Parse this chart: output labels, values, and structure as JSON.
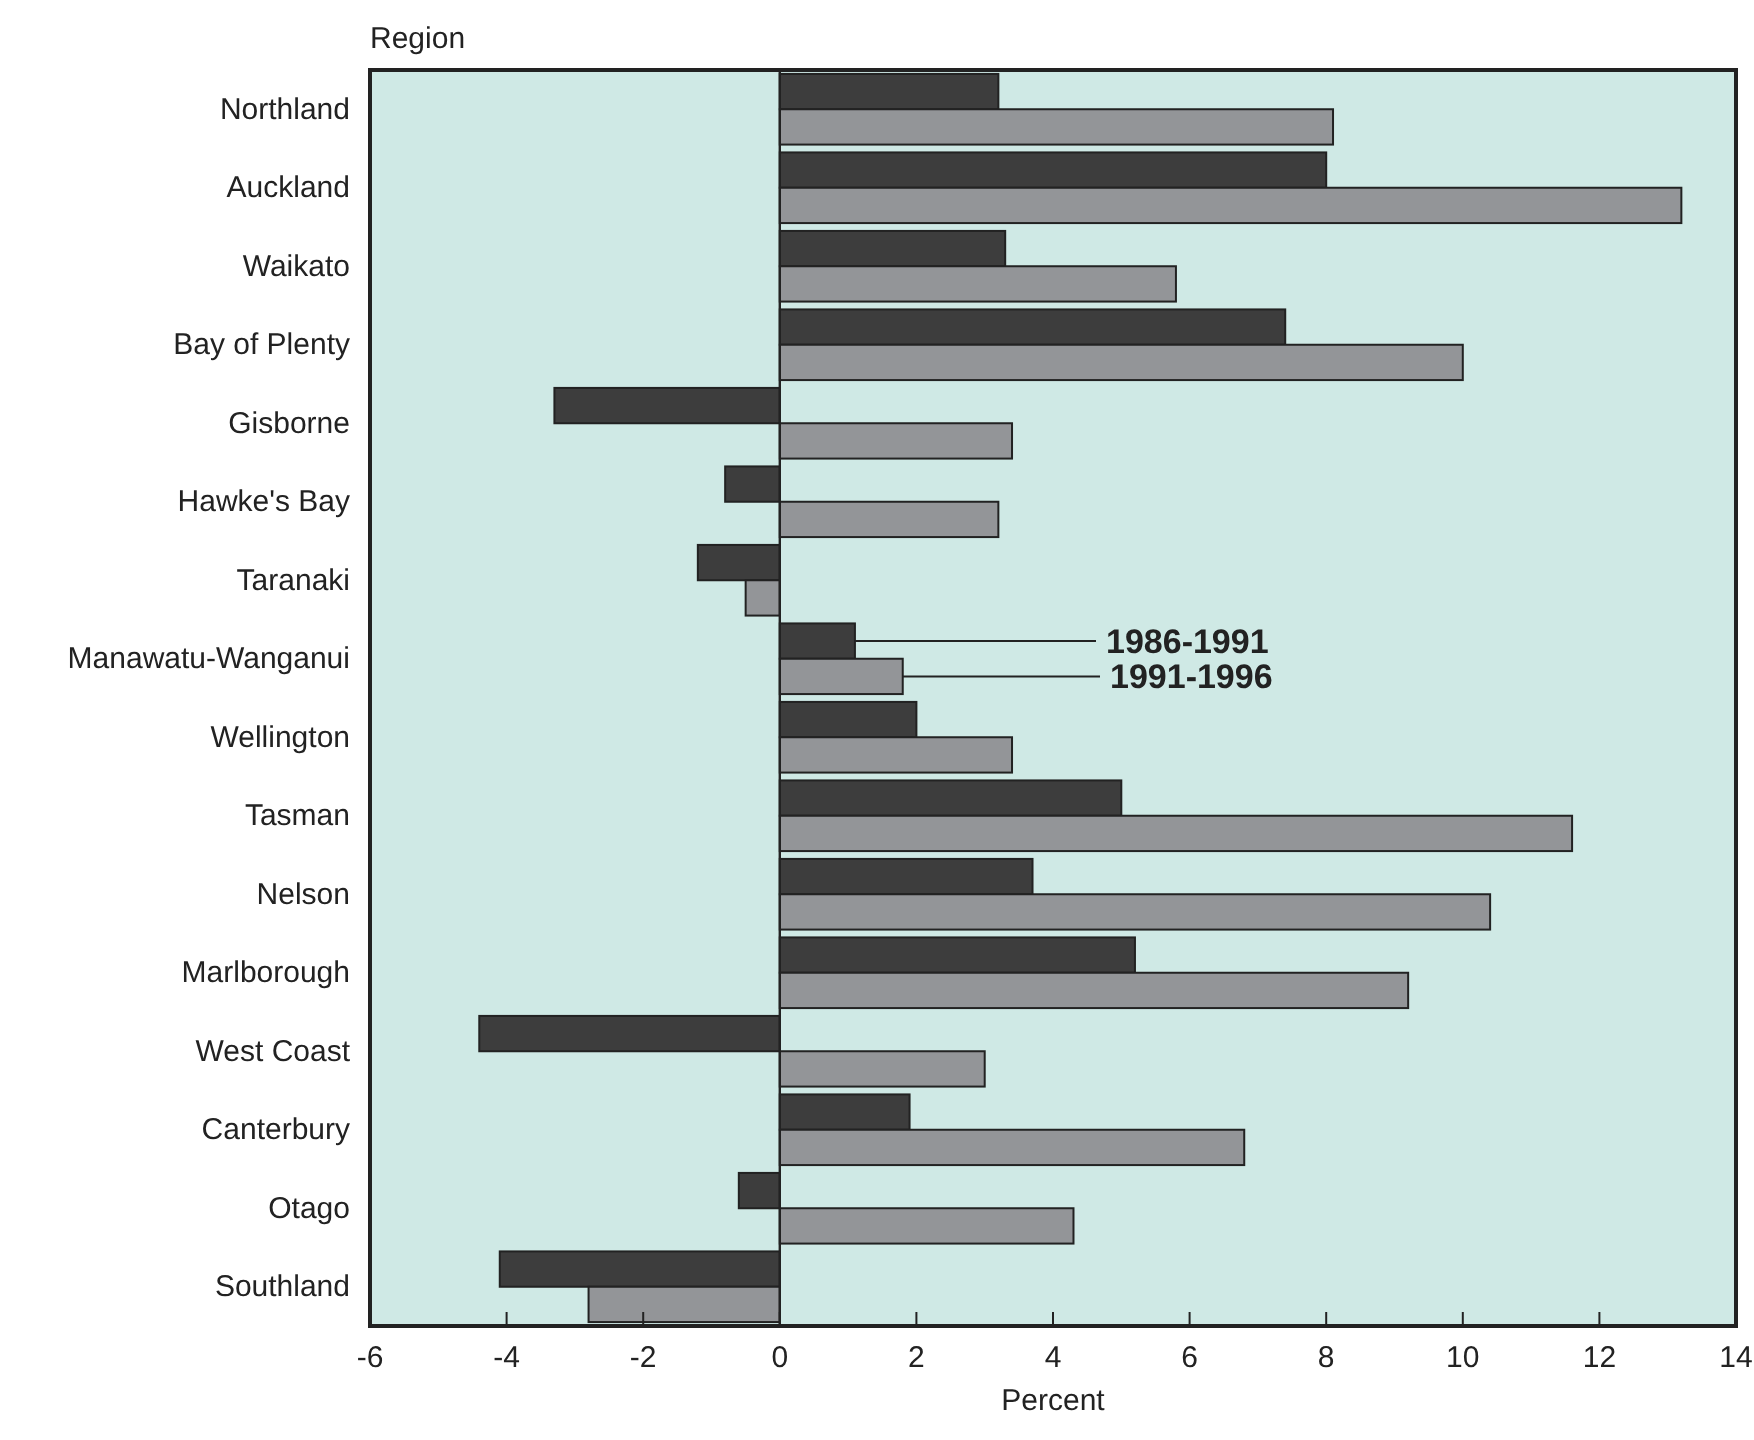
{
  "chart_data": {
    "type": "bar",
    "orientation": "horizontal",
    "xlabel": "Percent",
    "ylabel": "Region",
    "categories": [
      "Northland",
      "Auckland",
      "Waikato",
      "Bay of Plenty",
      "Gisborne",
      "Hawke's Bay",
      "Taranaki",
      "Manawatu-Wanganui",
      "Wellington",
      "Tasman",
      "Nelson",
      "Marlborough",
      "West Coast",
      "Canterbury",
      "Otago",
      "Southland"
    ],
    "series": [
      {
        "name": "1986-1991",
        "color": "#3d3d3d",
        "values": [
          3.2,
          8.0,
          3.3,
          7.4,
          -3.3,
          -0.8,
          -1.2,
          1.1,
          2.0,
          5.0,
          3.7,
          5.2,
          -4.4,
          1.9,
          -0.6,
          -4.1
        ]
      },
      {
        "name": "1991-1996",
        "color": "#939598",
        "values": [
          8.1,
          13.2,
          5.8,
          10.0,
          3.4,
          3.2,
          -0.5,
          1.8,
          3.4,
          11.6,
          10.4,
          9.2,
          3.0,
          6.8,
          4.3,
          -2.8
        ]
      }
    ],
    "xlim": [
      -6,
      14
    ],
    "xticks": [
      -6,
      -4,
      -2,
      0,
      2,
      4,
      6,
      8,
      10,
      12,
      14
    ],
    "legend": false
  }
}
